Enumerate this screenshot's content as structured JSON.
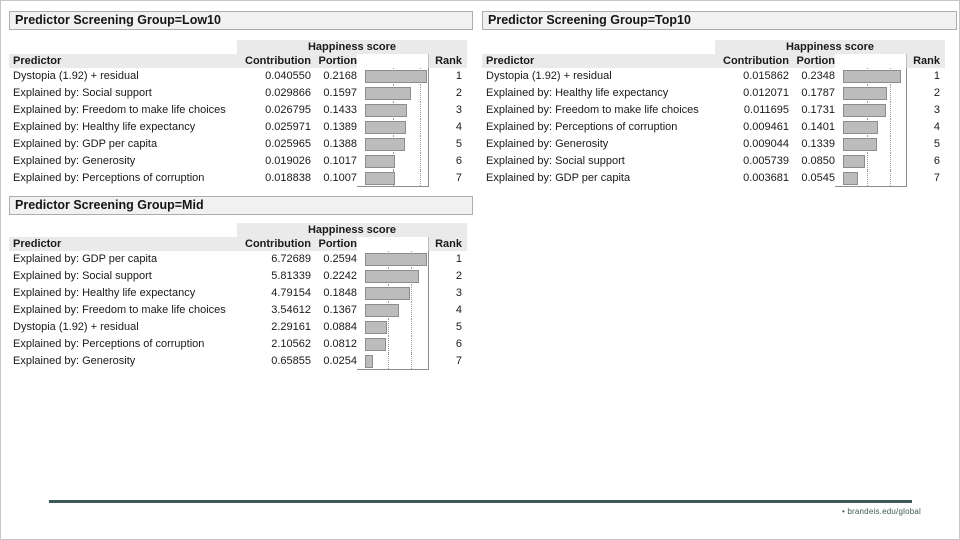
{
  "report": {
    "tables": [
      {
        "title": "Predictor Screening Group=Low10",
        "group_header": "Happiness score",
        "columns": {
          "predictor": "Predictor",
          "contribution": "Contribution",
          "portion": "Portion",
          "rank": "Rank"
        },
        "axis": {
          "max": 0.22,
          "gridlines": [
            0.1,
            0.2
          ]
        },
        "rows": [
          {
            "predictor": "Dystopia (1.92) + residual",
            "contribution": "0.040550",
            "portion": "0.2168",
            "rank": "1"
          },
          {
            "predictor": "Explained by: Social support",
            "contribution": "0.029866",
            "portion": "0.1597",
            "rank": "2"
          },
          {
            "predictor": "Explained by: Freedom to make life choices",
            "contribution": "0.026795",
            "portion": "0.1433",
            "rank": "3"
          },
          {
            "predictor": "Explained by: Healthy life expectancy",
            "contribution": "0.025971",
            "portion": "0.1389",
            "rank": "4"
          },
          {
            "predictor": "Explained by: GDP per capita",
            "contribution": "0.025965",
            "portion": "0.1388",
            "rank": "5"
          },
          {
            "predictor": "Explained by: Generosity",
            "contribution": "0.019026",
            "portion": "0.1017",
            "rank": "6"
          },
          {
            "predictor": "Explained by: Perceptions of corruption",
            "contribution": "0.018838",
            "portion": "0.1007",
            "rank": "7"
          }
        ]
      },
      {
        "title": "Predictor Screening Group=Top10",
        "group_header": "Happiness score",
        "columns": {
          "predictor": "Predictor",
          "contribution": "Contribution",
          "portion": "Portion",
          "rank": "Rank"
        },
        "axis": {
          "max": 0.257,
          "gridlines": [
            0.1,
            0.2
          ]
        },
        "rows": [
          {
            "predictor": "Dystopia (1.92) + residual",
            "contribution": "0.015862",
            "portion": "0.2348",
            "rank": "1"
          },
          {
            "predictor": "Explained by: Healthy life expectancy",
            "contribution": "0.012071",
            "portion": "0.1787",
            "rank": "2"
          },
          {
            "predictor": "Explained by: Freedom to make life choices",
            "contribution": "0.011695",
            "portion": "0.1731",
            "rank": "3"
          },
          {
            "predictor": "Explained by: Perceptions of corruption",
            "contribution": "0.009461",
            "portion": "0.1401",
            "rank": "4"
          },
          {
            "predictor": "Explained by: Generosity",
            "contribution": "0.009044",
            "portion": "0.1339",
            "rank": "5"
          },
          {
            "predictor": "Explained by: Social support",
            "contribution": "0.005739",
            "portion": "0.0850",
            "rank": "6"
          },
          {
            "predictor": "Explained by: GDP per capita",
            "contribution": "0.003681",
            "portion": "0.0545",
            "rank": "7"
          }
        ]
      },
      {
        "title": "Predictor Screening Group=Mid",
        "group_header": "Happiness score",
        "columns": {
          "predictor": "Predictor",
          "contribution": "Contribution",
          "portion": "Portion",
          "rank": "Rank"
        },
        "axis": {
          "max": 0.264,
          "gridlines": [
            0.1,
            0.2
          ]
        },
        "rows": [
          {
            "predictor": "Explained by: GDP per capita",
            "contribution": "6.72689",
            "portion": "0.2594",
            "rank": "1"
          },
          {
            "predictor": "Explained by: Social support",
            "contribution": "5.81339",
            "portion": "0.2242",
            "rank": "2"
          },
          {
            "predictor": "Explained by: Healthy life expectancy",
            "contribution": "4.79154",
            "portion": "0.1848",
            "rank": "3"
          },
          {
            "predictor": "Explained by: Freedom to make life choices",
            "contribution": "3.54612",
            "portion": "0.1367",
            "rank": "4"
          },
          {
            "predictor": "Dystopia (1.92) + residual",
            "contribution": "2.29161",
            "portion": "0.0884",
            "rank": "5"
          },
          {
            "predictor": "Explained by: Perceptions of corruption",
            "contribution": "2.10562",
            "portion": "0.0812",
            "rank": "6"
          },
          {
            "predictor": "Explained by: Generosity",
            "contribution": "0.65855",
            "portion": "0.0254",
            "rank": "7"
          }
        ]
      }
    ]
  },
  "style": {
    "accent_color": "#3d5a5a",
    "bar_fill": "#bcbcbc",
    "bar_border": "#8d8d8d"
  },
  "footer": {
    "text": "• brandeis.edu/global"
  }
}
